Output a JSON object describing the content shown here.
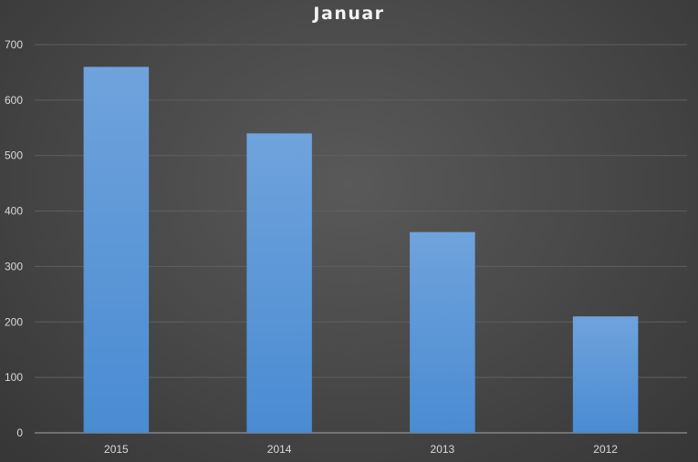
{
  "chart_data": {
    "type": "bar",
    "title": "Januar",
    "xlabel": "",
    "ylabel": "",
    "categories": [
      "2015",
      "2014",
      "2013",
      "2012"
    ],
    "values": [
      660,
      540,
      362,
      210
    ],
    "ylim": [
      0,
      700
    ],
    "yticks": [
      0,
      100,
      200,
      300,
      400,
      500,
      600,
      700
    ],
    "grid": true,
    "legend": "none",
    "colors": {
      "bar_top": "#6fa3dc",
      "bar_bottom": "#4a8bd2",
      "gridline": "#5f5f5f",
      "axis": "#a6a6a6",
      "text": "#d9d9d9"
    }
  }
}
